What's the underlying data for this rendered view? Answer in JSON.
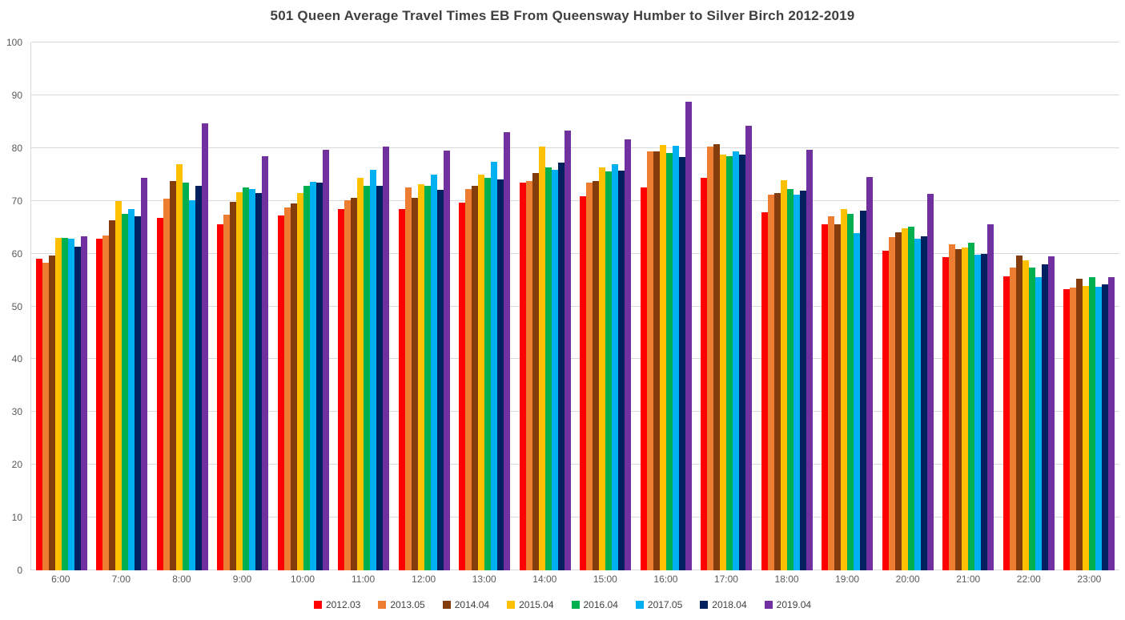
{
  "chart_data": {
    "type": "bar",
    "title": "501 Queen Average Travel Times EB From Queensway Humber to Silver Birch 2012-2019",
    "xlabel": "",
    "ylabel": "",
    "ylim": [
      0,
      100
    ],
    "ytick_step": 10,
    "grid": true,
    "legend_position": "bottom",
    "gridline_color": "#d9d9d9",
    "axis_text_color": "#595959",
    "title_color": "#3f3f3f",
    "categories": [
      "6:00",
      "7:00",
      "8:00",
      "9:00",
      "10:00",
      "11:00",
      "12:00",
      "13:00",
      "14:00",
      "15:00",
      "16:00",
      "17:00",
      "18:00",
      "19:00",
      "20:00",
      "21:00",
      "22:00",
      "23:00"
    ],
    "yticks": [
      0,
      10,
      20,
      30,
      40,
      50,
      60,
      70,
      80,
      90,
      100
    ],
    "series": [
      {
        "name": "2012.03",
        "color": "#FF0000",
        "values": [
          59.0,
          62.8,
          66.8,
          65.5,
          67.3,
          68.4,
          68.4,
          69.6,
          73.5,
          70.8,
          72.6,
          74.4,
          67.8,
          65.6,
          60.6,
          59.3,
          55.7,
          53.3
        ]
      },
      {
        "name": "2013.05",
        "color": "#ED7D31",
        "values": [
          58.3,
          63.4,
          70.4,
          67.4,
          68.7,
          70.1,
          72.5,
          72.3,
          73.7,
          73.5,
          79.4,
          80.2,
          71.1,
          67.0,
          63.1,
          61.8,
          57.4,
          53.5
        ]
      },
      {
        "name": "2014.04",
        "color": "#843C0C",
        "values": [
          59.6,
          66.3,
          73.8,
          69.8,
          69.5,
          70.5,
          70.6,
          72.8,
          75.2,
          73.7,
          79.3,
          80.7,
          71.5,
          65.5,
          64.0,
          60.8,
          59.7,
          55.2
        ]
      },
      {
        "name": "2015.04",
        "color": "#FFC000",
        "values": [
          63.0,
          70.0,
          77.0,
          71.6,
          71.4,
          74.3,
          73.1,
          75.0,
          80.2,
          76.4,
          80.6,
          78.8,
          73.9,
          68.4,
          64.8,
          61.2,
          58.8,
          53.9
        ]
      },
      {
        "name": "2016.04",
        "color": "#00B050",
        "values": [
          63.0,
          67.6,
          73.4,
          72.6,
          72.8,
          72.8,
          72.8,
          74.4,
          76.4,
          75.6,
          79.1,
          78.4,
          72.3,
          67.5,
          65.1,
          62.1,
          57.3,
          55.5
        ]
      },
      {
        "name": "2017.05",
        "color": "#00B0F0",
        "values": [
          62.9,
          68.4,
          70.1,
          72.3,
          73.6,
          75.8,
          75.0,
          77.4,
          75.8,
          77.0,
          80.4,
          79.4,
          71.1,
          63.9,
          62.8,
          59.8,
          55.6,
          53.7
        ]
      },
      {
        "name": "2018.04",
        "color": "#002060",
        "values": [
          61.3,
          67.1,
          72.8,
          71.4,
          73.5,
          72.8,
          72.1,
          74.1,
          77.2,
          75.7,
          78.3,
          78.7,
          71.9,
          68.1,
          63.3,
          59.9,
          58.0,
          54.1
        ]
      },
      {
        "name": "2019.04",
        "color": "#7030A0",
        "values": [
          63.3,
          74.4,
          84.7,
          78.4,
          79.6,
          80.3,
          79.5,
          83.0,
          83.3,
          81.6,
          88.8,
          84.2,
          79.6,
          74.5,
          71.3,
          65.5,
          59.5,
          55.6
        ]
      }
    ]
  }
}
